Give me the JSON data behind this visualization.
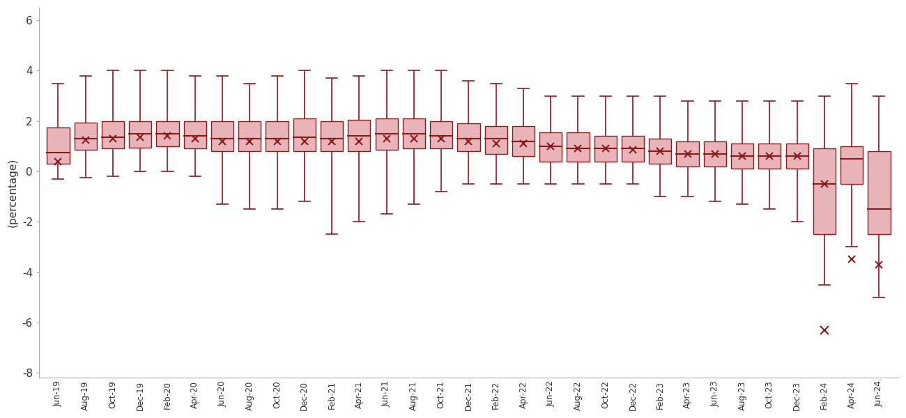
{
  "all_labels": [
    "Jun-19",
    "Aug-19",
    "Oct-19",
    "Dec-19",
    "Feb-20",
    "Apr-20",
    "Jun-20",
    "Aug-20",
    "Oct-20",
    "Dec-20",
    "Feb-21",
    "Apr-21",
    "Jun-21",
    "Aug-21",
    "Oct-21",
    "Dec-21",
    "Feb-22",
    "Apr-22",
    "Jun-22",
    "Aug-22",
    "Oct-22",
    "Dec-22",
    "Feb-23",
    "Apr-23",
    "Jun-23",
    "Aug-23",
    "Oct-23",
    "Dec-23",
    "Feb-24",
    "Apr-24",
    "Jun-24"
  ],
  "box_stats": [
    {
      "q1": 0.3,
      "med": 0.75,
      "q3": 1.75,
      "whislo": -0.3,
      "whishi": 3.5,
      "mean": 0.4,
      "fliers": []
    },
    {
      "q1": 0.85,
      "med": 1.3,
      "q3": 1.95,
      "whislo": -0.25,
      "whishi": 3.8,
      "mean": 1.25,
      "fliers": []
    },
    {
      "q1": 0.9,
      "med": 1.35,
      "q3": 2.0,
      "whislo": -0.2,
      "whishi": 4.0,
      "mean": 1.3,
      "fliers": []
    },
    {
      "q1": 0.95,
      "med": 1.5,
      "q3": 2.0,
      "whislo": 0.0,
      "whishi": 4.0,
      "mean": 1.35,
      "fliers": []
    },
    {
      "q1": 1.0,
      "med": 1.5,
      "q3": 2.0,
      "whislo": 0.0,
      "whishi": 4.0,
      "mean": 1.4,
      "fliers": []
    },
    {
      "q1": 0.9,
      "med": 1.4,
      "q3": 2.0,
      "whislo": -0.2,
      "whishi": 3.8,
      "mean": 1.3,
      "fliers": []
    },
    {
      "q1": 0.8,
      "med": 1.3,
      "q3": 2.0,
      "whislo": -1.3,
      "whishi": 3.8,
      "mean": 1.2,
      "fliers": []
    },
    {
      "q1": 0.8,
      "med": 1.3,
      "q3": 2.0,
      "whislo": -1.5,
      "whishi": 3.5,
      "mean": 1.2,
      "fliers": []
    },
    {
      "q1": 0.8,
      "med": 1.3,
      "q3": 2.0,
      "whislo": -1.5,
      "whishi": 3.8,
      "mean": 1.2,
      "fliers": []
    },
    {
      "q1": 0.8,
      "med": 1.35,
      "q3": 2.1,
      "whislo": -1.2,
      "whishi": 4.0,
      "mean": 1.2,
      "fliers": []
    },
    {
      "q1": 0.8,
      "med": 1.3,
      "q3": 2.0,
      "whislo": -2.5,
      "whishi": 3.7,
      "mean": 1.2,
      "fliers": []
    },
    {
      "q1": 0.8,
      "med": 1.4,
      "q3": 2.05,
      "whislo": -2.0,
      "whishi": 3.8,
      "mean": 1.2,
      "fliers": []
    },
    {
      "q1": 0.85,
      "med": 1.5,
      "q3": 2.1,
      "whislo": -1.7,
      "whishi": 4.0,
      "mean": 1.3,
      "fliers": []
    },
    {
      "q1": 0.9,
      "med": 1.5,
      "q3": 2.1,
      "whislo": -1.3,
      "whishi": 4.0,
      "mean": 1.3,
      "fliers": []
    },
    {
      "q1": 0.9,
      "med": 1.4,
      "q3": 2.0,
      "whislo": -0.8,
      "whishi": 4.0,
      "mean": 1.3,
      "fliers": []
    },
    {
      "q1": 0.8,
      "med": 1.3,
      "q3": 1.9,
      "whislo": -0.5,
      "whishi": 3.6,
      "mean": 1.2,
      "fliers": []
    },
    {
      "q1": 0.7,
      "med": 1.3,
      "q3": 1.8,
      "whislo": -0.5,
      "whishi": 3.5,
      "mean": 1.1,
      "fliers": []
    },
    {
      "q1": 0.6,
      "med": 1.2,
      "q3": 1.8,
      "whislo": -0.5,
      "whishi": 3.3,
      "mean": 1.1,
      "fliers": []
    },
    {
      "q1": 0.4,
      "med": 1.0,
      "q3": 1.55,
      "whislo": -0.5,
      "whishi": 3.0,
      "mean": 1.0,
      "fliers": []
    },
    {
      "q1": 0.4,
      "med": 0.9,
      "q3": 1.55,
      "whislo": -0.5,
      "whishi": 3.0,
      "mean": 0.9,
      "fliers": []
    },
    {
      "q1": 0.4,
      "med": 0.9,
      "q3": 1.4,
      "whislo": -0.5,
      "whishi": 3.0,
      "mean": 0.9,
      "fliers": []
    },
    {
      "q1": 0.4,
      "med": 0.9,
      "q3": 1.4,
      "whislo": -0.5,
      "whishi": 3.0,
      "mean": 0.85,
      "fliers": []
    },
    {
      "q1": 0.3,
      "med": 0.8,
      "q3": 1.3,
      "whislo": -1.0,
      "whishi": 3.0,
      "mean": 0.8,
      "fliers": []
    },
    {
      "q1": 0.2,
      "med": 0.7,
      "q3": 1.2,
      "whislo": -1.0,
      "whishi": 2.8,
      "mean": 0.7,
      "fliers": []
    },
    {
      "q1": 0.2,
      "med": 0.7,
      "q3": 1.2,
      "whislo": -1.2,
      "whishi": 2.8,
      "mean": 0.7,
      "fliers": []
    },
    {
      "q1": 0.1,
      "med": 0.6,
      "q3": 1.1,
      "whislo": -1.3,
      "whishi": 2.8,
      "mean": 0.6,
      "fliers": []
    },
    {
      "q1": 0.1,
      "med": 0.6,
      "q3": 1.1,
      "whislo": -1.5,
      "whishi": 2.8,
      "mean": 0.6,
      "fliers": []
    },
    {
      "q1": 0.1,
      "med": 0.6,
      "q3": 1.1,
      "whislo": -2.0,
      "whishi": 2.8,
      "mean": 0.6,
      "fliers": []
    },
    {
      "q1": -2.5,
      "med": -0.5,
      "q3": 0.9,
      "whislo": -4.5,
      "whishi": 3.0,
      "mean": -0.5,
      "fliers": [
        -6.3
      ]
    },
    {
      "q1": -0.5,
      "med": 0.5,
      "q3": 1.0,
      "whislo": -3.0,
      "whishi": 3.5,
      "mean": -3.5,
      "fliers": []
    },
    {
      "q1": -2.5,
      "med": -1.5,
      "q3": 0.8,
      "whislo": -5.0,
      "whishi": 3.0,
      "mean": -3.7,
      "fliers": []
    }
  ],
  "box_facecolor": "#e8b4b8",
  "box_edgecolor": "#8b1a1a",
  "line_color": "#8b1a1a",
  "ylabel": "(percentage)",
  "ylim": [
    -8.2,
    6.5
  ],
  "yticks": [
    -8,
    -6,
    -4,
    -2,
    0,
    2,
    4,
    6
  ],
  "background_color": "#ffffff",
  "box_width": 0.82
}
